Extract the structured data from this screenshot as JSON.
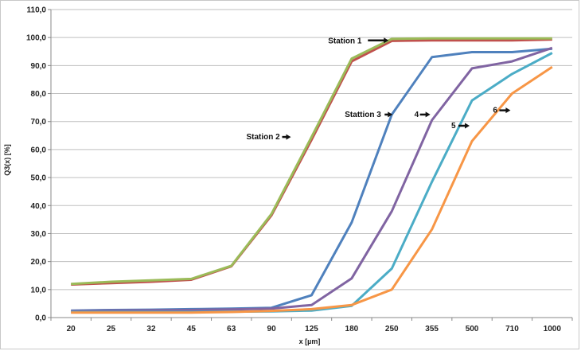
{
  "chart_data": {
    "type": "line",
    "title": "",
    "xlabel": "x [µm]",
    "ylabel": "Q3(x) [%]",
    "categories": [
      "20",
      "25",
      "32",
      "45",
      "63",
      "90",
      "125",
      "180",
      "250",
      "355",
      "500",
      "710",
      "1000"
    ],
    "ylim": [
      0,
      110
    ],
    "yticks": [
      "0,0",
      "10,0",
      "20,0",
      "30,0",
      "40,0",
      "50,0",
      "60,0",
      "70,0",
      "80,0",
      "90,0",
      "100,0",
      "110,0"
    ],
    "grid": "horizontal",
    "legend": "none",
    "series": [
      {
        "color": "#c0504d",
        "values": [
          11.8,
          12.3,
          12.8,
          13.5,
          18.3,
          36.5,
          63.5,
          91.5,
          98.8,
          99.0,
          99.0,
          99.0,
          99.3
        ]
      },
      {
        "color": "#9bbb59",
        "values": [
          12.0,
          12.8,
          13.3,
          13.8,
          18.5,
          37.0,
          64.5,
          92.5,
          99.5,
          99.7,
          99.7,
          99.7,
          99.7
        ]
      },
      {
        "color": "#4f81bd",
        "values": [
          2.5,
          2.7,
          2.8,
          3.0,
          3.2,
          3.5,
          8.0,
          34.0,
          72.5,
          93.0,
          94.8,
          94.8,
          96.0
        ]
      },
      {
        "color": "#8064a2",
        "values": [
          2.3,
          2.5,
          2.6,
          2.7,
          2.9,
          3.2,
          4.5,
          14.0,
          38.0,
          70.5,
          89.0,
          91.5,
          96.3
        ]
      },
      {
        "color": "#4bacc6",
        "values": [
          2.0,
          2.0,
          2.0,
          2.0,
          2.1,
          2.2,
          2.5,
          4.2,
          17.5,
          48.5,
          77.5,
          87.0,
          94.5
        ]
      },
      {
        "color": "#f79646",
        "values": [
          1.8,
          1.8,
          1.8,
          1.8,
          2.0,
          2.4,
          3.0,
          4.5,
          10.0,
          31.5,
          63.0,
          80.0,
          89.5
        ]
      }
    ],
    "annotations": [
      {
        "text": "Station 1",
        "x": "250",
        "y": 99.0
      },
      {
        "text": "Station 2",
        "x": "125",
        "y": 64.5
      },
      {
        "text": "Stattion 3",
        "x": "250",
        "y": 72.5
      },
      {
        "text": "4",
        "x": "355",
        "y": 72.5
      },
      {
        "text": "5",
        "x": "500",
        "y": 68.5
      },
      {
        "text": "6",
        "x": "710",
        "y": 74.0
      }
    ]
  }
}
